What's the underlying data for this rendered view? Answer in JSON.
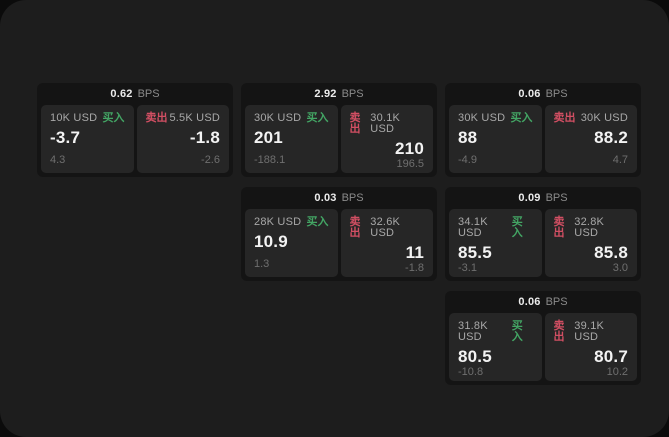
{
  "labels": {
    "bps_unit": "BPS",
    "buy": "买入",
    "sell": "卖出"
  },
  "colors": {
    "buy_accent": "#43a564",
    "sell_accent": "#d24f63",
    "window_bg": "#1d1d1d",
    "card_bg": "#141414",
    "pane_bg": "#262626"
  },
  "cards": [
    {
      "bps": "0.62",
      "buy": {
        "size": "10K USD",
        "value": "-3.7",
        "delta": "4.3"
      },
      "sell": {
        "size": "5.5K USD",
        "value": "-1.8",
        "delta": "-2.6"
      }
    },
    {
      "bps": "2.92",
      "buy": {
        "size": "30K USD",
        "value": "201",
        "delta": "-188.1"
      },
      "sell": {
        "size": "30.1K USD",
        "value": "210",
        "delta": "196.5"
      }
    },
    {
      "bps": "0.06",
      "buy": {
        "size": "30K USD",
        "value": "88",
        "delta": "-4.9"
      },
      "sell": {
        "size": "30K USD",
        "value": "88.2",
        "delta": "4.7"
      }
    },
    {
      "bps": "0.03",
      "buy": {
        "size": "28K USD",
        "value": "10.9",
        "delta": "1.3"
      },
      "sell": {
        "size": "32.6K USD",
        "value": "11",
        "delta": "-1.8"
      }
    },
    {
      "bps": "0.09",
      "buy": {
        "size": "34.1K USD",
        "value": "85.5",
        "delta": "-3.1"
      },
      "sell": {
        "size": "32.8K USD",
        "value": "85.8",
        "delta": "3.0"
      }
    },
    {
      "bps": "0.06",
      "buy": {
        "size": "31.8K USD",
        "value": "80.5",
        "delta": "-10.8"
      },
      "sell": {
        "size": "39.1K USD",
        "value": "80.7",
        "delta": "10.2"
      }
    }
  ]
}
